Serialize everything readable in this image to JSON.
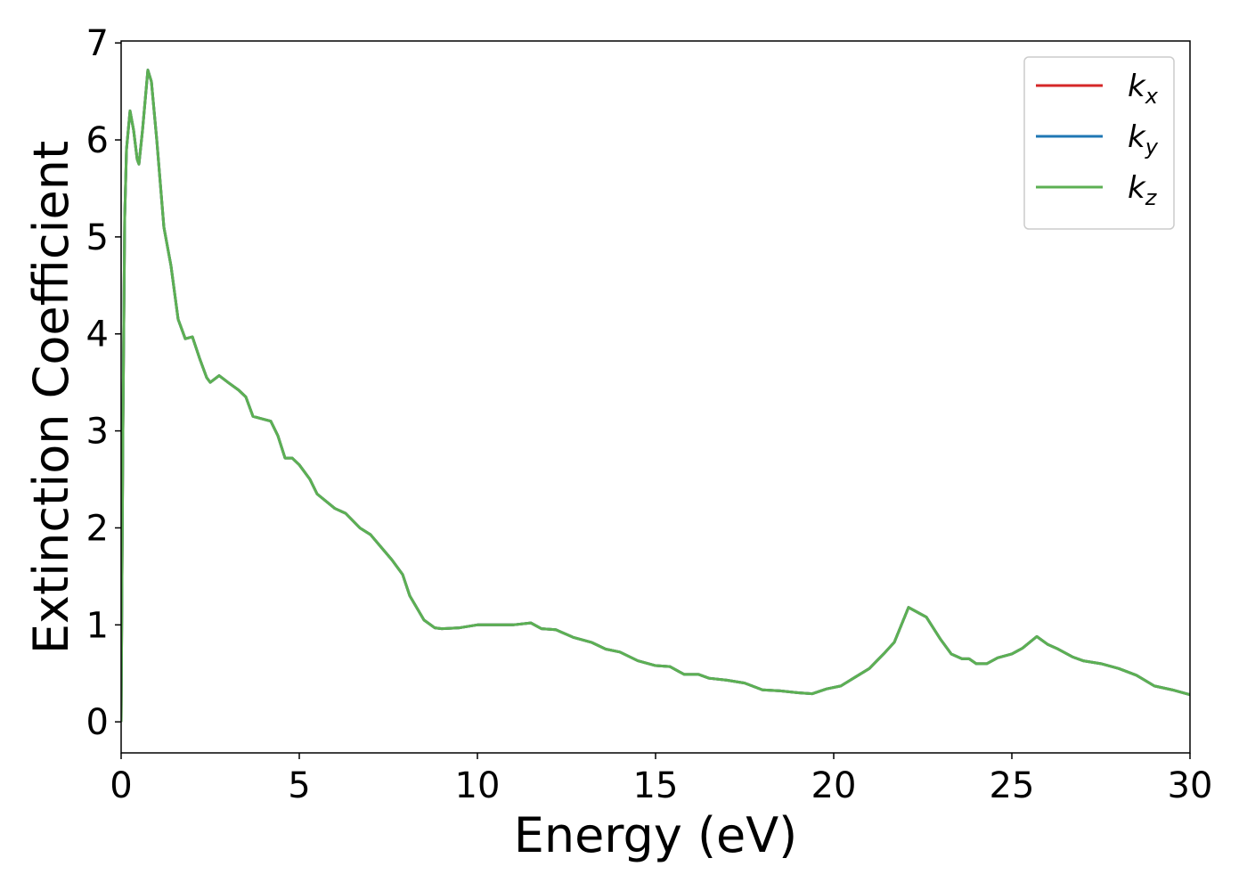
{
  "chart_data": {
    "type": "line",
    "xlabel": "Energy (eV)",
    "ylabel": "Extinction Coefficient",
    "x": [
      0,
      0.05,
      0.1,
      0.15,
      0.25,
      0.35,
      0.45,
      0.5,
      0.6,
      0.75,
      0.85,
      1.0,
      1.2,
      1.4,
      1.6,
      1.8,
      2.0,
      2.2,
      2.4,
      2.5,
      2.75,
      3.0,
      3.3,
      3.5,
      3.7,
      4.0,
      4.2,
      4.4,
      4.6,
      4.8,
      5.0,
      5.3,
      5.5,
      6.0,
      6.3,
      6.7,
      7.0,
      7.3,
      7.6,
      7.9,
      8.1,
      8.5,
      8.8,
      9.0,
      9.5,
      10.0,
      10.5,
      11.0,
      11.5,
      11.8,
      12.2,
      12.7,
      13.2,
      13.6,
      14.0,
      14.5,
      15.0,
      15.4,
      15.8,
      16.2,
      16.5,
      17.0,
      17.5,
      18.0,
      18.5,
      19.0,
      19.4,
      19.8,
      20.2,
      20.6,
      21.0,
      21.4,
      21.7,
      22.1,
      22.4,
      22.6,
      23.0,
      23.3,
      23.6,
      23.8,
      24.0,
      24.3,
      24.6,
      25.0,
      25.3,
      25.7,
      26.0,
      26.3,
      26.7,
      27.0,
      27.5,
      28.0,
      28.5,
      29.0,
      29.5,
      30.0
    ],
    "series": [
      {
        "name": "kx",
        "color": "#d62728",
        "values": [
          0,
          3,
          5.2,
          5.9,
          6.3,
          6.1,
          5.8,
          5.75,
          6.1,
          6.72,
          6.6,
          6.0,
          5.1,
          4.7,
          4.15,
          3.95,
          3.97,
          3.75,
          3.55,
          3.5,
          3.57,
          3.5,
          3.42,
          3.35,
          3.15,
          3.12,
          3.1,
          2.95,
          2.72,
          2.72,
          2.65,
          2.5,
          2.35,
          2.2,
          2.15,
          2.0,
          1.93,
          1.8,
          1.67,
          1.52,
          1.3,
          1.05,
          0.97,
          0.96,
          0.97,
          1.0,
          1.0,
          1.0,
          1.02,
          0.96,
          0.95,
          0.87,
          0.82,
          0.75,
          0.72,
          0.63,
          0.58,
          0.57,
          0.49,
          0.49,
          0.45,
          0.43,
          0.4,
          0.33,
          0.32,
          0.3,
          0.29,
          0.34,
          0.37,
          0.46,
          0.55,
          0.7,
          0.82,
          1.18,
          1.12,
          1.08,
          0.85,
          0.7,
          0.65,
          0.65,
          0.6,
          0.6,
          0.66,
          0.7,
          0.76,
          0.88,
          0.8,
          0.75,
          0.67,
          0.63,
          0.6,
          0.55,
          0.48,
          0.37,
          0.33,
          0.28
        ]
      },
      {
        "name": "ky",
        "color": "#1f77b4",
        "values": [
          0,
          3,
          5.2,
          5.9,
          6.3,
          6.1,
          5.8,
          5.75,
          6.1,
          6.72,
          6.6,
          6.0,
          5.1,
          4.7,
          4.15,
          3.95,
          3.97,
          3.75,
          3.55,
          3.5,
          3.57,
          3.5,
          3.42,
          3.35,
          3.15,
          3.12,
          3.1,
          2.95,
          2.72,
          2.72,
          2.65,
          2.5,
          2.35,
          2.2,
          2.15,
          2.0,
          1.93,
          1.8,
          1.67,
          1.52,
          1.3,
          1.05,
          0.97,
          0.96,
          0.97,
          1.0,
          1.0,
          1.0,
          1.02,
          0.96,
          0.95,
          0.87,
          0.82,
          0.75,
          0.72,
          0.63,
          0.58,
          0.57,
          0.49,
          0.49,
          0.45,
          0.43,
          0.4,
          0.33,
          0.32,
          0.3,
          0.29,
          0.34,
          0.37,
          0.46,
          0.55,
          0.7,
          0.82,
          1.18,
          1.12,
          1.08,
          0.85,
          0.7,
          0.65,
          0.65,
          0.6,
          0.6,
          0.66,
          0.7,
          0.76,
          0.88,
          0.8,
          0.75,
          0.67,
          0.63,
          0.6,
          0.55,
          0.48,
          0.37,
          0.33,
          0.28
        ]
      },
      {
        "name": "kz",
        "color": "#5cb053",
        "values": [
          0,
          3,
          5.2,
          5.9,
          6.3,
          6.1,
          5.8,
          5.75,
          6.1,
          6.72,
          6.6,
          6.0,
          5.1,
          4.7,
          4.15,
          3.95,
          3.97,
          3.75,
          3.55,
          3.5,
          3.57,
          3.5,
          3.42,
          3.35,
          3.15,
          3.12,
          3.1,
          2.95,
          2.72,
          2.72,
          2.65,
          2.5,
          2.35,
          2.2,
          2.15,
          2.0,
          1.93,
          1.8,
          1.67,
          1.52,
          1.3,
          1.05,
          0.97,
          0.96,
          0.97,
          1.0,
          1.0,
          1.0,
          1.02,
          0.96,
          0.95,
          0.87,
          0.82,
          0.75,
          0.72,
          0.63,
          0.58,
          0.57,
          0.49,
          0.49,
          0.45,
          0.43,
          0.4,
          0.33,
          0.32,
          0.3,
          0.29,
          0.34,
          0.37,
          0.46,
          0.55,
          0.7,
          0.82,
          1.18,
          1.12,
          1.08,
          0.85,
          0.7,
          0.65,
          0.65,
          0.6,
          0.6,
          0.66,
          0.7,
          0.76,
          0.88,
          0.8,
          0.75,
          0.67,
          0.63,
          0.6,
          0.55,
          0.48,
          0.37,
          0.33,
          0.28
        ]
      }
    ],
    "xlim": [
      0,
      30
    ],
    "xticks": [
      0,
      5,
      10,
      15,
      20,
      25,
      30
    ],
    "ylim": [
      -0.32,
      7.02
    ],
    "yticks": [
      0,
      1,
      2,
      3,
      4,
      5,
      6,
      7
    ],
    "legend": "upper right",
    "grid": false
  }
}
